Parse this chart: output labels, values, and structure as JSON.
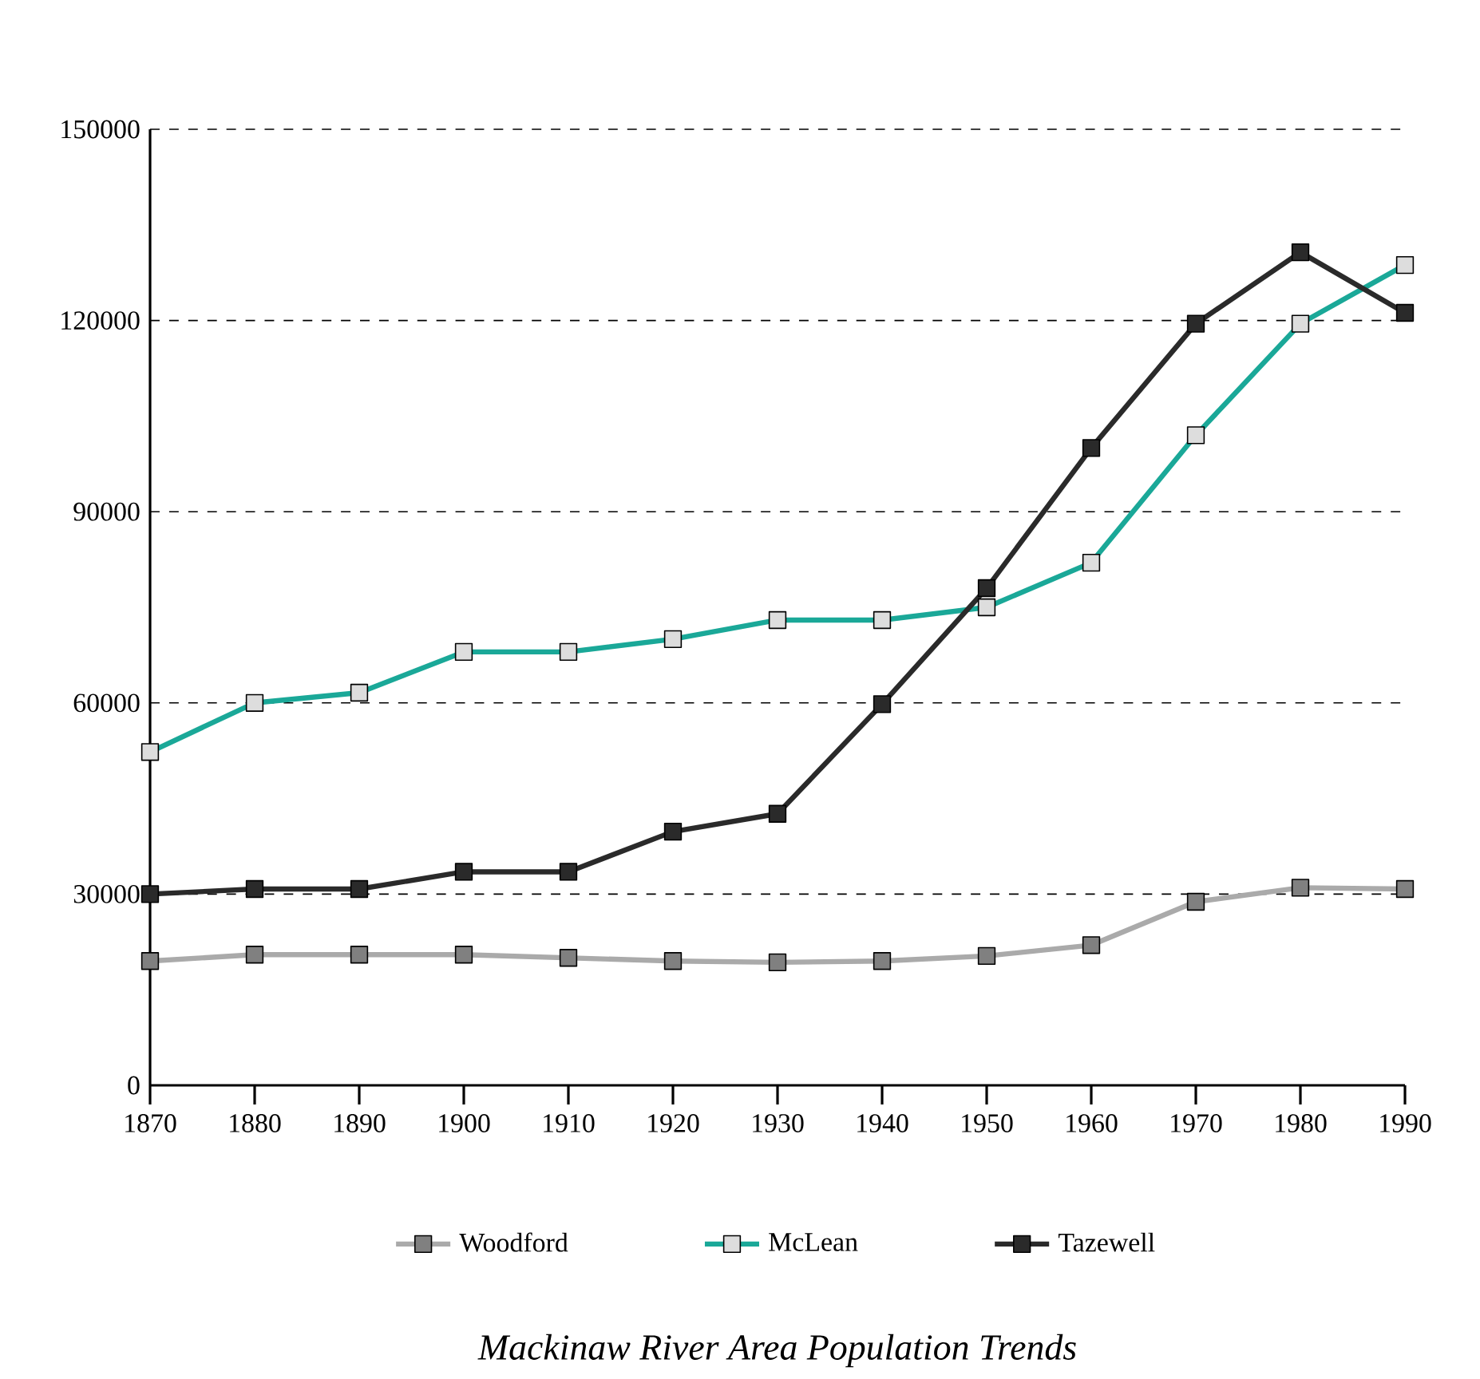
{
  "chart_data": {
    "type": "line",
    "title": "Mackinaw River Area Population Trends",
    "x": [
      1870,
      1880,
      1890,
      1900,
      1910,
      1920,
      1930,
      1940,
      1950,
      1960,
      1970,
      1980,
      1990
    ],
    "xlim": [
      1870,
      1990
    ],
    "xticks": [
      1870,
      1880,
      1890,
      1900,
      1910,
      1920,
      1930,
      1940,
      1950,
      1960,
      1970,
      1980,
      1990
    ],
    "ylim": [
      0,
      150000
    ],
    "yticks": [
      0,
      30000,
      60000,
      90000,
      120000,
      150000
    ],
    "grid": "y",
    "legend": "bottom",
    "marker": "square",
    "line_style": "solid",
    "series": [
      {
        "name": "Woodford",
        "color": "#aaaaaa",
        "values": [
          19500,
          20500,
          20500,
          20500,
          20000,
          19500,
          19300,
          19500,
          20300,
          22000,
          28800,
          31000,
          30800
        ]
      },
      {
        "name": "McLean",
        "color": "#1aa898",
        "values": [
          52300,
          60000,
          61600,
          68000,
          68000,
          70000,
          73000,
          73000,
          75000,
          82000,
          102000,
          119500,
          128700
        ]
      },
      {
        "name": "Tazewell",
        "color": "#2a2a2a",
        "values": [
          30000,
          30800,
          30800,
          33500,
          33500,
          39800,
          42600,
          59800,
          78000,
          100000,
          119500,
          130700,
          121200
        ]
      }
    ]
  }
}
